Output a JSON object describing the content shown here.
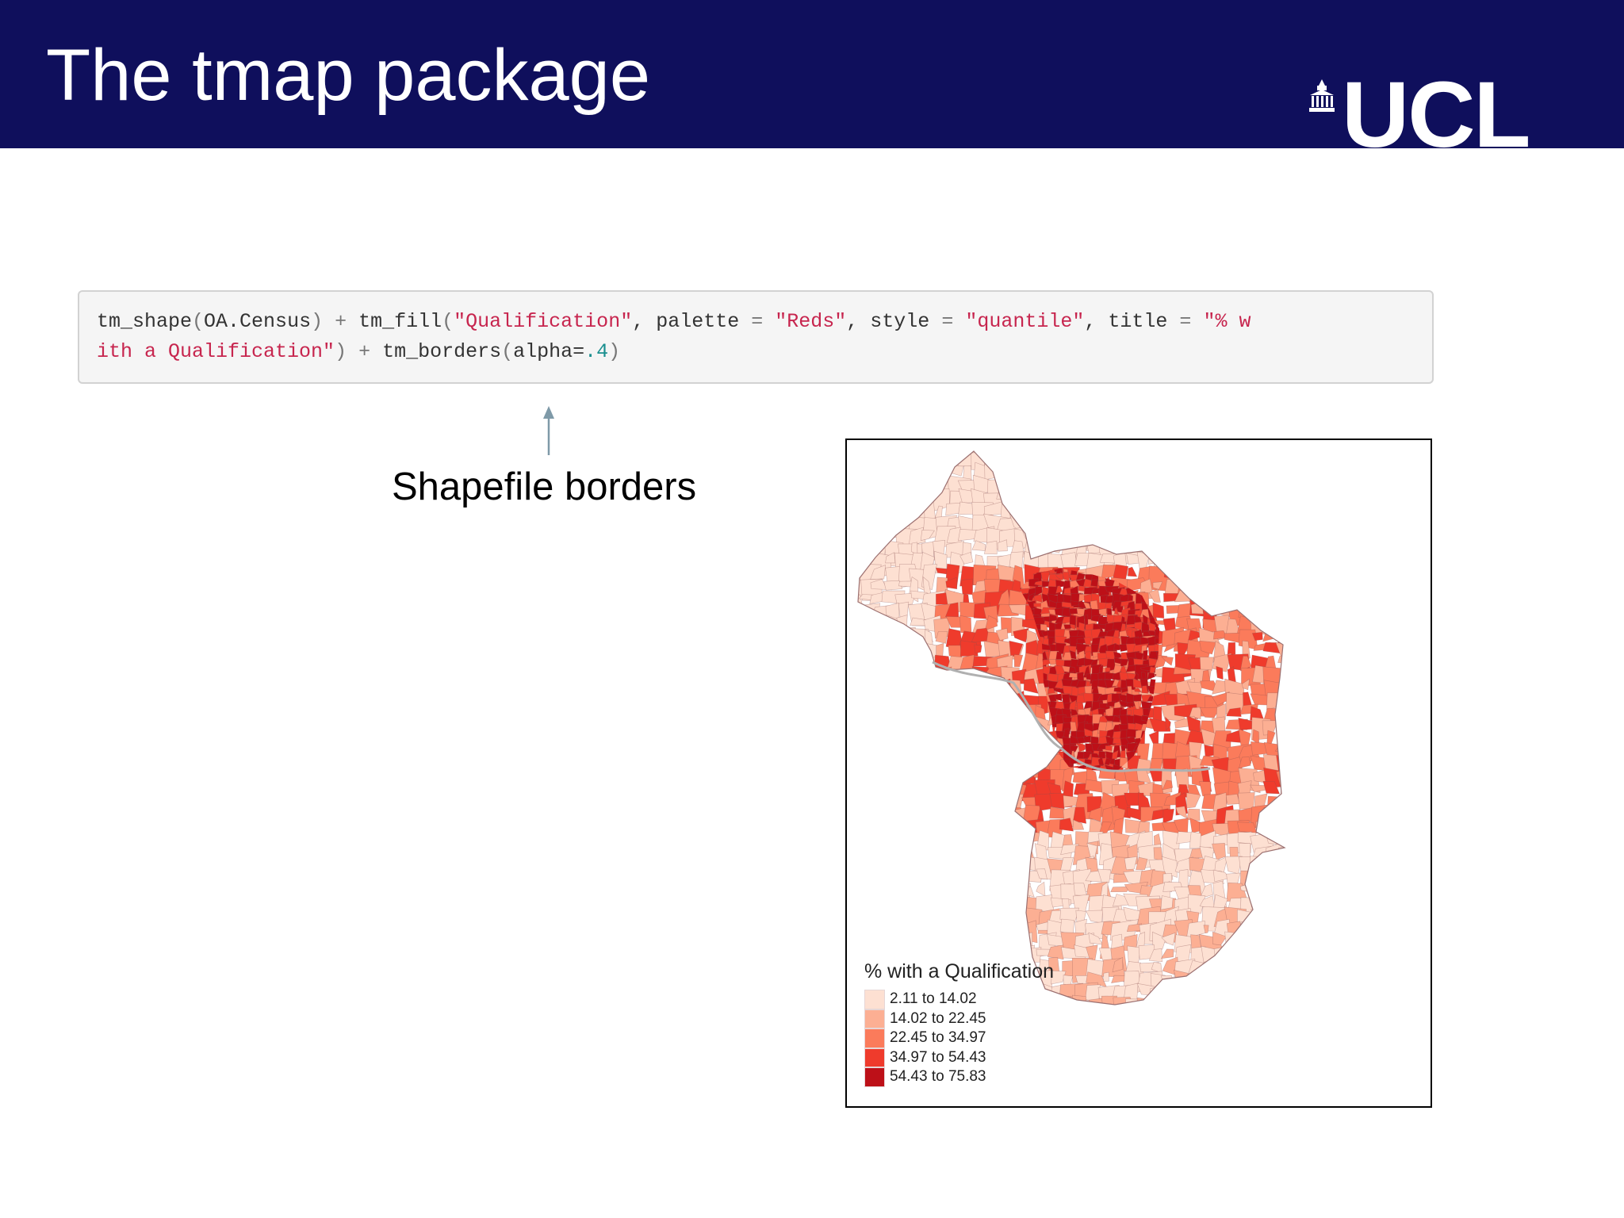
{
  "slide": {
    "title": "The tmap package",
    "logo_text": "UCL",
    "header_color": "#0f0f5c"
  },
  "code": {
    "line1": [
      {
        "text": "tm_shape",
        "style": "plain"
      },
      {
        "text": "(",
        "style": "op"
      },
      {
        "text": "OA.Census",
        "style": "plain"
      },
      {
        "text": ")",
        "style": "op"
      },
      {
        "text": " + ",
        "style": "op"
      },
      {
        "text": "tm_fill",
        "style": "plain"
      },
      {
        "text": "(",
        "style": "op"
      },
      {
        "text": "\"Qualification\"",
        "style": "str"
      },
      {
        "text": ", palette ",
        "style": "plain"
      },
      {
        "text": "=",
        "style": "op"
      },
      {
        "text": " ",
        "style": "plain"
      },
      {
        "text": "\"Reds\"",
        "style": "str"
      },
      {
        "text": ", style ",
        "style": "plain"
      },
      {
        "text": "=",
        "style": "op"
      },
      {
        "text": " ",
        "style": "plain"
      },
      {
        "text": "\"quantile\"",
        "style": "str"
      },
      {
        "text": ", title ",
        "style": "plain"
      },
      {
        "text": "=",
        "style": "op"
      },
      {
        "text": " ",
        "style": "plain"
      },
      {
        "text": "\"% w",
        "style": "str"
      }
    ],
    "line2": [
      {
        "text": "ith a Qualification\"",
        "style": "str"
      },
      {
        "text": ")",
        "style": "op"
      },
      {
        "text": " + ",
        "style": "op"
      },
      {
        "text": "tm_borders",
        "style": "plain"
      },
      {
        "text": "(",
        "style": "op"
      },
      {
        "text": "alpha=",
        "style": "plain"
      },
      {
        "text": ".4",
        "style": "num"
      },
      {
        "text": ")",
        "style": "op"
      }
    ]
  },
  "annotation": {
    "label": "Shapefile borders",
    "arrow_icon": "up-arrow-icon"
  },
  "map": {
    "legend_title": "% with a Qualification",
    "legend": [
      {
        "label": "2.11 to 14.02",
        "color": "#fde0d2"
      },
      {
        "label": "14.02 to 22.45",
        "color": "#fcaf93"
      },
      {
        "label": "22.45 to 34.97",
        "color": "#fb7b5b"
      },
      {
        "label": "34.97 to 54.43",
        "color": "#ef3b2c"
      },
      {
        "label": "54.43 to 75.83",
        "color": "#bd1018"
      }
    ]
  }
}
